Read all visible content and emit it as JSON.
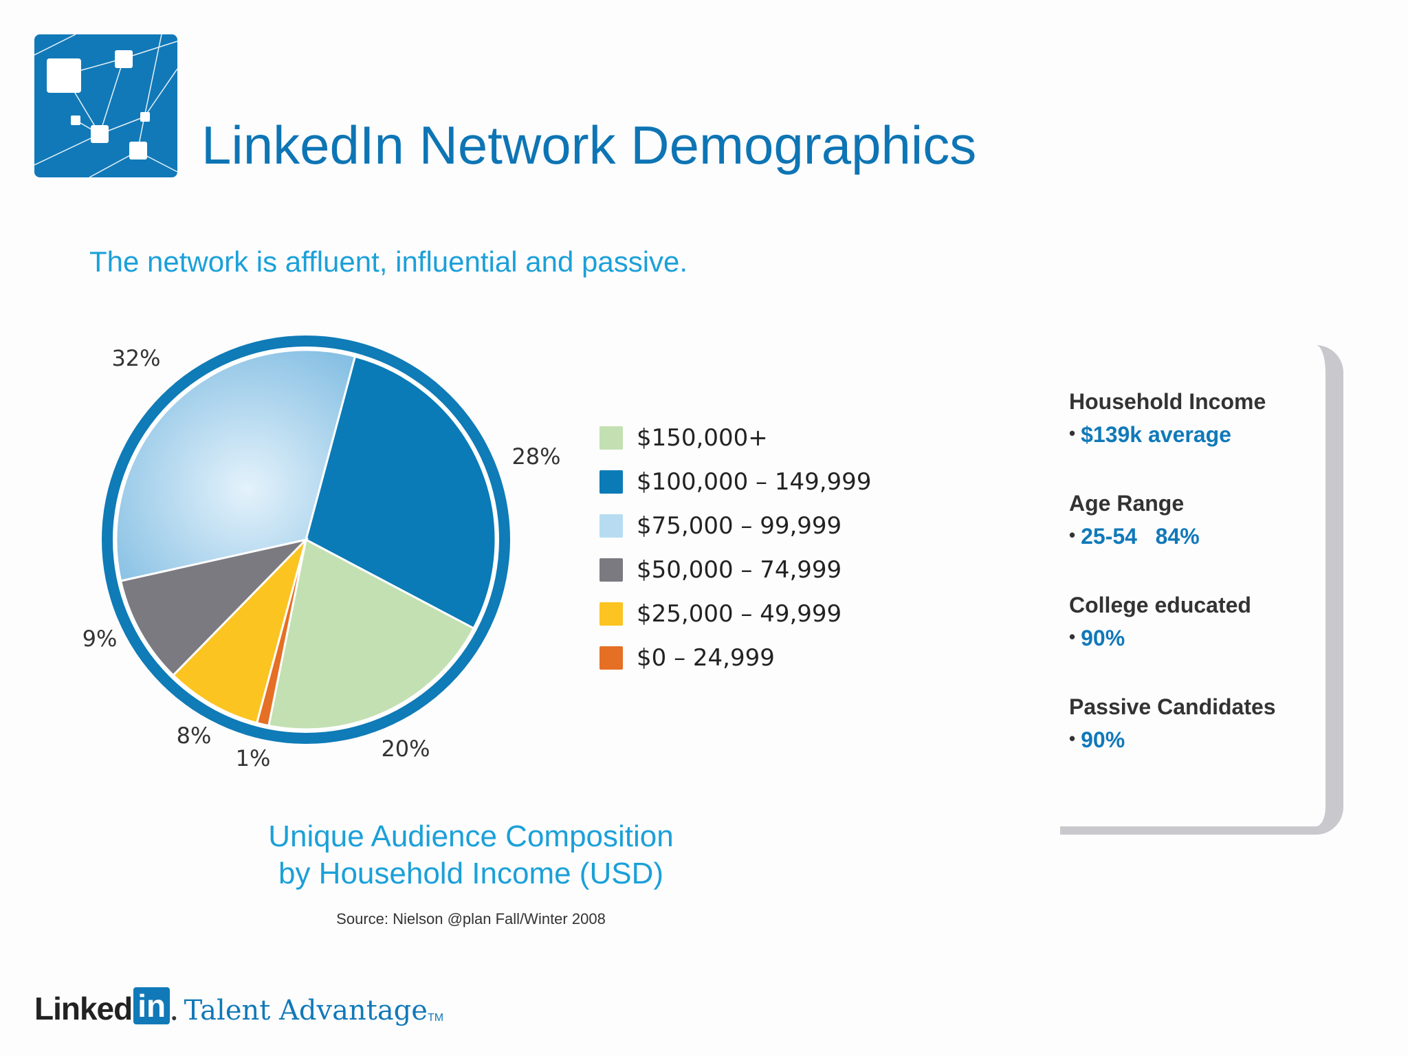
{
  "header": {
    "title": "LinkedIn Network Demographics",
    "subtitle": "The network is affluent, influential and passive."
  },
  "colors": {
    "brand": "#0e75b4",
    "accent": "#1ba0d8",
    "ring": "#0f7bb7"
  },
  "chart_data": {
    "type": "pie",
    "title": "Unique Audience Composition by Household Income (USD)",
    "caption_lines": [
      "Unique Audience Composition",
      "by Household Income (USD)"
    ],
    "source": "Source: Nielson @plan Fall/Winter 2008",
    "legend_position": "right",
    "slices": [
      {
        "label": "$100,000 – 149,999",
        "value": 28,
        "display": "28%",
        "color": "#0a7bb7"
      },
      {
        "label": "$150,000+",
        "value": 20,
        "display": "20%",
        "color": "#c3e0b2"
      },
      {
        "label": "$0 – 24,999",
        "value": 1,
        "display": "1%",
        "color": "#e56f24"
      },
      {
        "label": "$25,000 – 49,999",
        "value": 8,
        "display": "8%",
        "color": "#fcc421"
      },
      {
        "label": "$50,000 – 74,999",
        "value": 9,
        "display": "9%",
        "color": "#7b7a80"
      },
      {
        "label": "$75,000 – 99,999",
        "value": 32,
        "display": "32%",
        "color": "#9ccbe7"
      }
    ],
    "legend": [
      {
        "label": "$150,000+",
        "color": "#c3e0b2"
      },
      {
        "label": "$100,000 – 149,999",
        "color": "#0a7bb7"
      },
      {
        "label": "$75,000 – 99,999",
        "color": "#b7dcf1"
      },
      {
        "label": "$50,000 – 74,999",
        "color": "#7b7a80"
      },
      {
        "label": "$25,000 – 49,999",
        "color": "#fcc421"
      },
      {
        "label": "$0 – 24,999",
        "color": "#e56f24"
      }
    ]
  },
  "stats": [
    {
      "label": "Household Income",
      "value": "$139k average"
    },
    {
      "label": "Age Range",
      "value": "25-54   84%"
    },
    {
      "label": "College educated",
      "value": "90%"
    },
    {
      "label": "Passive Candidates",
      "value": "90%"
    }
  ],
  "footer": {
    "brand": "Linked",
    "brand_in": "in",
    "product": "Talent Advantage",
    "tm": "TM"
  }
}
